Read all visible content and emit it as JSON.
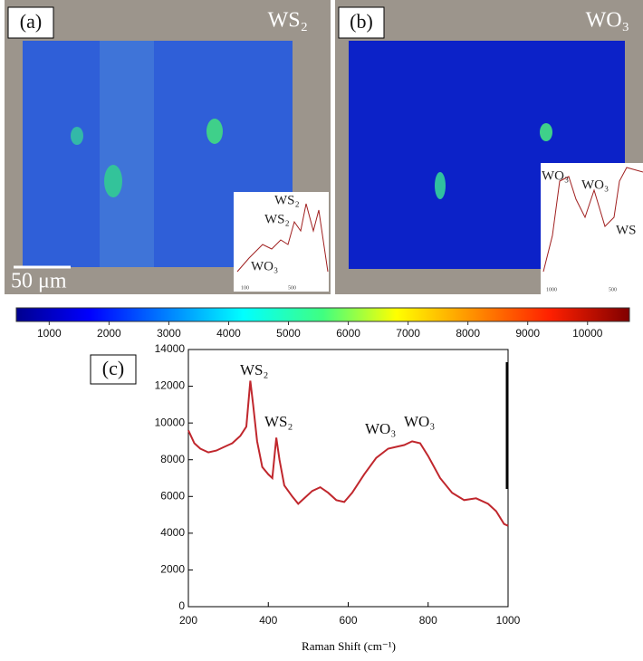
{
  "panels": [
    {
      "label": "(a)",
      "title": "WS₂",
      "scale_bar": "50 μm",
      "inset_labels": [
        "WS₂",
        "WS₂",
        "WO₃"
      ],
      "inset_ticks": [
        "100",
        "500"
      ]
    },
    {
      "label": "(b)",
      "title": "WO₃",
      "inset_labels": [
        "WO₃",
        "WO₃",
        "WS"
      ],
      "inset_ticks": [
        "1000",
        "500"
      ]
    }
  ],
  "chart_data": [
    {
      "type": "colorbar",
      "xlim": [
        450,
        10700
      ],
      "xticks": [
        1000,
        2000,
        3000,
        4000,
        5000,
        6000,
        7000,
        8000,
        9000,
        10000
      ]
    },
    {
      "type": "line",
      "label": "(c)",
      "x_label": "Raman Shift (cm⁻¹)",
      "color": "#c0272d",
      "annotations": [
        "WS₂",
        "WS₂",
        "WO₃",
        "WO₃"
      ],
      "x": [
        200,
        215,
        230,
        250,
        270,
        290,
        310,
        330,
        345,
        355,
        362,
        372,
        385,
        400,
        410,
        420,
        428,
        440,
        460,
        475,
        490,
        510,
        530,
        550,
        570,
        590,
        610,
        640,
        670,
        700,
        720,
        740,
        760,
        780,
        800,
        830,
        860,
        890,
        920,
        950,
        970,
        990,
        1000
      ],
      "values": [
        9600,
        8900,
        8600,
        8400,
        8500,
        8700,
        8900,
        9300,
        9800,
        12300,
        11000,
        9000,
        7600,
        7200,
        7000,
        9200,
        8000,
        6600,
        6000,
        5600,
        5900,
        6300,
        6500,
        6200,
        5800,
        5700,
        6200,
        7200,
        8100,
        8600,
        8700,
        8800,
        9000,
        8900,
        8200,
        7000,
        6200,
        5800,
        5900,
        5600,
        5200,
        4500,
        4400
      ],
      "xlim": [
        200,
        1000
      ],
      "ylim": [
        0,
        14000
      ],
      "xticks": [
        200,
        400,
        600,
        800,
        1000
      ],
      "yticks": [
        0,
        2000,
        4000,
        6000,
        8000,
        10000,
        12000,
        14000
      ]
    }
  ]
}
